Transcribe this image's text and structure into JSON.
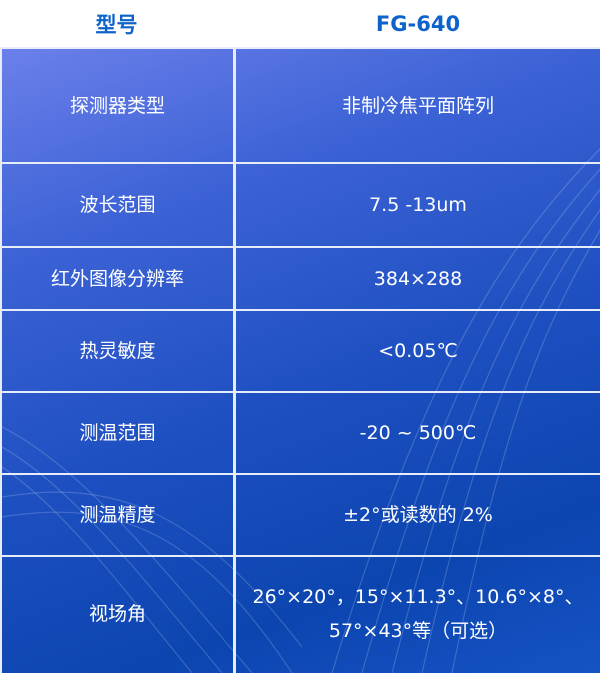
{
  "header": {
    "label": "型号",
    "value": "FG-640"
  },
  "rows": [
    {
      "label": "探测器类型",
      "value": "非制冷焦平面阵列"
    },
    {
      "label": "波长范围",
      "value": "7.5 -13um"
    },
    {
      "label": "红外图像分辨率",
      "value": "384×288"
    },
    {
      "label": "热灵敏度",
      "value": "<0.05℃"
    },
    {
      "label": "测温范围",
      "value": "-20 ~ 500℃"
    },
    {
      "label": "测温精度",
      "value": "±2°或读数的 2%"
    },
    {
      "label": "视场角",
      "value": "26°×20°，15°×11.3°、10.6°×8°、57°×43°等（可选）"
    }
  ],
  "colors": {
    "header_text": "#0d63c9",
    "table_bg": "#1d4fc0",
    "grid": "#e6ecf8"
  }
}
